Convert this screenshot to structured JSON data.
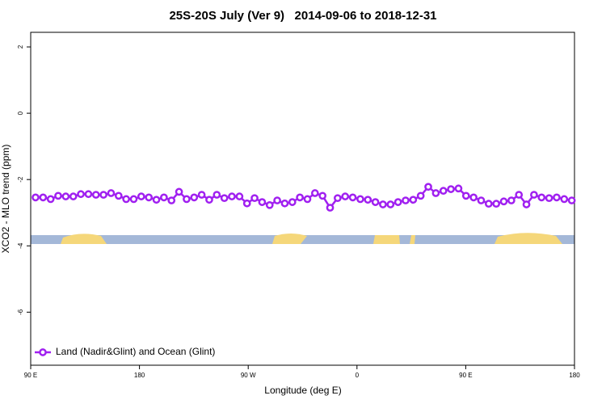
{
  "chart_data": {
    "type": "line",
    "title": "25S-20S July (Ver 9)   2014-09-06 to 2018-12-31",
    "xlabel": "Longitude (deg E)",
    "ylabel": "XCO2 - MLO trend (ppm)",
    "xlim": [
      90,
      540
    ],
    "ylim": [
      -7.6,
      2.44
    ],
    "xticks": [
      {
        "value": 90,
        "label": "90 E"
      },
      180,
      {
        "value": 270,
        "label": "90 W"
      },
      {
        "value": 360,
        "label": "0"
      },
      {
        "value": 450,
        "label": "90 E"
      },
      {
        "value": 540,
        "label": "180"
      }
    ],
    "yticks": [
      2,
      0,
      -2,
      -4,
      -6
    ],
    "legend": "bottom-left",
    "x": [
      94,
      100.25,
      106.5,
      112.75,
      119,
      125.25,
      131.5,
      137.75,
      144,
      150.25,
      156.5,
      162.75,
      169,
      175.25,
      181.5,
      187.75,
      194,
      200.25,
      206.5,
      212.75,
      219,
      225.25,
      231.5,
      237.75,
      244,
      250.25,
      256.5,
      262.75,
      269,
      275.25,
      281.5,
      287.75,
      294,
      300.25,
      306.5,
      312.75,
      319,
      325.25,
      331.5,
      337.75,
      344,
      350.25,
      356.5,
      362.75,
      369,
      375.25,
      381.5,
      387.75,
      394,
      400.25,
      406.5,
      412.75,
      419,
      425.25,
      431.5,
      437.75,
      444,
      450.25,
      456.5,
      462.75,
      469,
      475.25,
      481.5,
      487.75,
      494,
      500.25,
      506.5,
      512.75,
      519,
      525.25,
      531.5,
      537.75
    ],
    "series": [
      {
        "name": "Land (Nadir&Glint) and Ocean (Glint)",
        "color": "#a020f0",
        "values": [
          -2.54,
          -2.54,
          -2.59,
          -2.49,
          -2.51,
          -2.51,
          -2.44,
          -2.44,
          -2.46,
          -2.46,
          -2.41,
          -2.49,
          -2.59,
          -2.59,
          -2.51,
          -2.54,
          -2.61,
          -2.54,
          -2.63,
          -2.37,
          -2.59,
          -2.54,
          -2.46,
          -2.61,
          -2.46,
          -2.56,
          -2.51,
          -2.51,
          -2.72,
          -2.56,
          -2.68,
          -2.77,
          -2.63,
          -2.72,
          -2.68,
          -2.54,
          -2.59,
          -2.41,
          -2.49,
          -2.85,
          -2.56,
          -2.51,
          -2.54,
          -2.59,
          -2.61,
          -2.68,
          -2.75,
          -2.75,
          -2.68,
          -2.63,
          -2.61,
          -2.49,
          -2.22,
          -2.41,
          -2.34,
          -2.29,
          -2.27,
          -2.49,
          -2.54,
          -2.63,
          -2.73,
          -2.73,
          -2.66,
          -2.63,
          -2.46,
          -2.75,
          -2.46,
          -2.54,
          -2.56,
          -2.54,
          -2.59,
          -2.63
        ]
      }
    ]
  }
}
